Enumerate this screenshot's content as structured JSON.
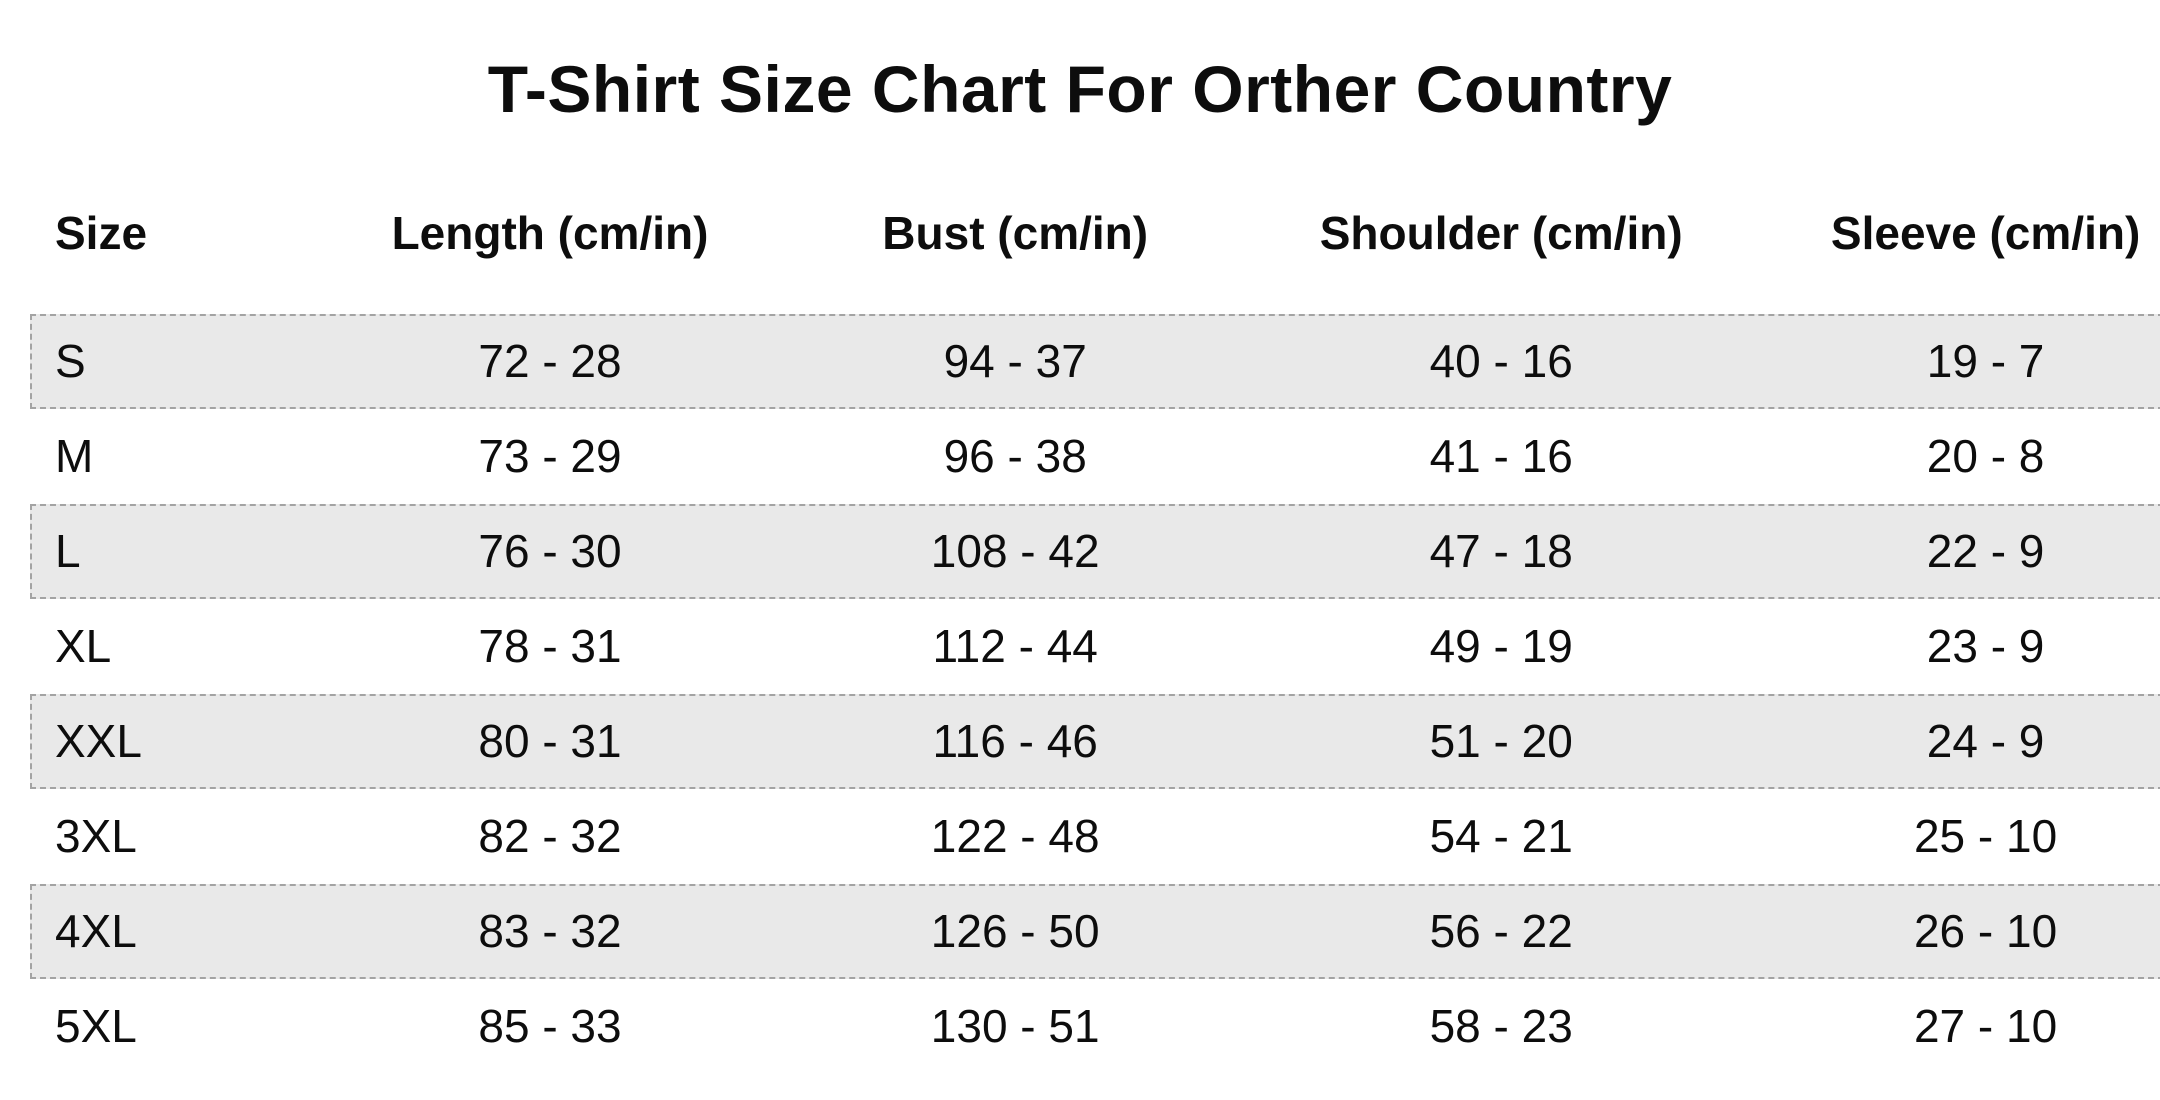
{
  "title": "T-Shirt Size Chart For Orther Country",
  "table": {
    "columns": [
      "Size",
      "Length (cm/in)",
      "Bust (cm/in)",
      "Shoulder (cm/in)",
      "Sleeve (cm/in)"
    ],
    "rows": [
      {
        "size": "S",
        "length": "72 - 28",
        "bust": "94 - 37",
        "shoulder": "40 - 16",
        "sleeve": "19 - 7",
        "shaded": true
      },
      {
        "size": "M",
        "length": "73 - 29",
        "bust": "96 - 38",
        "shoulder": "41 - 16",
        "sleeve": "20 - 8",
        "shaded": false
      },
      {
        "size": "L",
        "length": "76 - 30",
        "bust": "108 - 42",
        "shoulder": "47 - 18",
        "sleeve": "22 - 9",
        "shaded": true
      },
      {
        "size": "XL",
        "length": "78 - 31",
        "bust": "112 - 44",
        "shoulder": "49 - 19",
        "sleeve": "23 - 9",
        "shaded": false
      },
      {
        "size": "XXL",
        "length": "80 - 31",
        "bust": "116 - 46",
        "shoulder": "51 - 20",
        "sleeve": "24 - 9",
        "shaded": true
      },
      {
        "size": "3XL",
        "length": "82 - 32",
        "bust": "122 - 48",
        "shoulder": "54 - 21",
        "sleeve": "25 - 10",
        "shaded": false
      },
      {
        "size": "4XL",
        "length": "83 - 32",
        "bust": "126 - 50",
        "shoulder": "56 - 22",
        "sleeve": "26 - 10",
        "shaded": true
      },
      {
        "size": "5XL",
        "length": "85 - 33",
        "bust": "130 - 51",
        "shoulder": "58 - 23",
        "sleeve": "27 - 10",
        "shaded": false
      }
    ]
  },
  "colors": {
    "background": "#ffffff",
    "text": "#0d0d0d",
    "row_shade": "#e9e9e9",
    "row_border": "#a3a3a3"
  },
  "chart_data": {
    "type": "table",
    "title": "T-Shirt Size Chart For Orther Country",
    "columns": [
      "Size",
      "Length (cm/in)",
      "Bust (cm/in)",
      "Shoulder (cm/in)",
      "Sleeve (cm/in)"
    ],
    "rows": [
      [
        "S",
        "72 - 28",
        "94 - 37",
        "40 - 16",
        "19 - 7"
      ],
      [
        "M",
        "73 - 29",
        "96 - 38",
        "41 - 16",
        "20 - 8"
      ],
      [
        "L",
        "76 - 30",
        "108 - 42",
        "47 - 18",
        "22 - 9"
      ],
      [
        "XL",
        "78 - 31",
        "112 - 44",
        "49 - 19",
        "23 - 9"
      ],
      [
        "XXL",
        "80 - 31",
        "116 - 46",
        "51 - 20",
        "24 - 9"
      ],
      [
        "3XL",
        "82 - 32",
        "122 - 48",
        "54 - 21",
        "25 - 10"
      ],
      [
        "4XL",
        "83 - 32",
        "126 - 50",
        "56 - 22",
        "26 - 10"
      ],
      [
        "5XL",
        "85 - 33",
        "130 - 51",
        "58 - 23",
        "27 - 10"
      ]
    ],
    "layout_hints": {
      "shaded_row_indices": [
        0,
        2,
        4,
        6
      ],
      "first_column_align": "left",
      "other_columns_align": "center",
      "shaded_row_style": "light gray fill with dashed gray outline"
    }
  }
}
